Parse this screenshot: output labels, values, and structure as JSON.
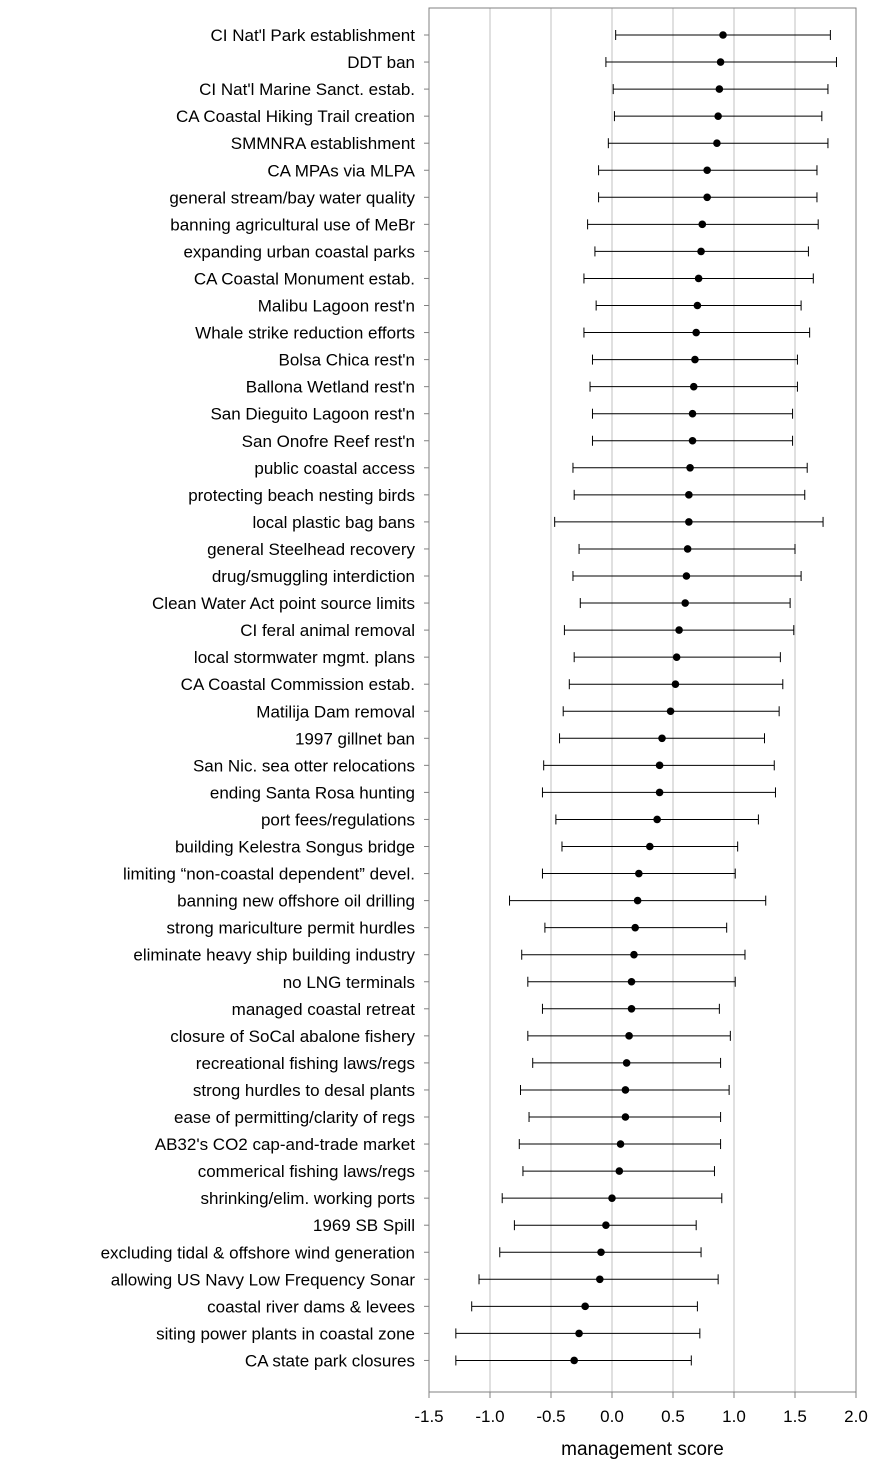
{
  "chart_data": {
    "type": "scatter",
    "orientation": "horizontal",
    "xlabel": "management score",
    "xlim": [
      -1.5,
      2.0
    ],
    "xticks": [
      "-1.5",
      "-1.0",
      "-0.5",
      "0.0",
      "0.5",
      "1.0",
      "1.5",
      "2.0"
    ],
    "xtick_values": [
      -1.5,
      -1.0,
      -0.5,
      0.0,
      0.5,
      1.0,
      1.5,
      2.0
    ],
    "grid": "vertical",
    "marker_color": "#000000",
    "grid_color": "#c0c0c0",
    "points": [
      {
        "label": "CI Nat'l Park establishment",
        "mean": 0.91,
        "low": 0.03,
        "high": 1.79
      },
      {
        "label": "DDT ban",
        "mean": 0.89,
        "low": -0.05,
        "high": 1.84
      },
      {
        "label": "CI Nat'l Marine Sanct. estab.",
        "mean": 0.88,
        "low": 0.01,
        "high": 1.77
      },
      {
        "label": "CA Coastal Hiking Trail creation",
        "mean": 0.87,
        "low": 0.02,
        "high": 1.72
      },
      {
        "label": "SMMNRA establishment",
        "mean": 0.86,
        "low": -0.03,
        "high": 1.77
      },
      {
        "label": "CA MPAs via MLPA",
        "mean": 0.78,
        "low": -0.11,
        "high": 1.68
      },
      {
        "label": "general stream/bay water quality",
        "mean": 0.78,
        "low": -0.11,
        "high": 1.68
      },
      {
        "label": "banning agricultural use of MeBr",
        "mean": 0.74,
        "low": -0.2,
        "high": 1.69
      },
      {
        "label": "expanding urban coastal parks",
        "mean": 0.73,
        "low": -0.14,
        "high": 1.61
      },
      {
        "label": "CA Coastal Monument estab.",
        "mean": 0.71,
        "low": -0.23,
        "high": 1.65
      },
      {
        "label": "Malibu Lagoon rest'n",
        "mean": 0.7,
        "low": -0.13,
        "high": 1.55
      },
      {
        "label": "Whale strike reduction efforts",
        "mean": 0.69,
        "low": -0.23,
        "high": 1.62
      },
      {
        "label": "Bolsa Chica rest'n",
        "mean": 0.68,
        "low": -0.16,
        "high": 1.52
      },
      {
        "label": "Ballona Wetland rest'n",
        "mean": 0.67,
        "low": -0.18,
        "high": 1.52
      },
      {
        "label": "San Dieguito Lagoon rest'n",
        "mean": 0.66,
        "low": -0.16,
        "high": 1.48
      },
      {
        "label": "San Onofre Reef rest'n",
        "mean": 0.66,
        "low": -0.16,
        "high": 1.48
      },
      {
        "label": "public coastal access",
        "mean": 0.64,
        "low": -0.32,
        "high": 1.6
      },
      {
        "label": "protecting beach nesting birds",
        "mean": 0.63,
        "low": -0.31,
        "high": 1.58
      },
      {
        "label": "local plastic bag bans",
        "mean": 0.63,
        "low": -0.47,
        "high": 1.73
      },
      {
        "label": "general Steelhead recovery",
        "mean": 0.62,
        "low": -0.27,
        "high": 1.5
      },
      {
        "label": "drug/smuggling interdiction",
        "mean": 0.61,
        "low": -0.32,
        "high": 1.55
      },
      {
        "label": "Clean Water Act point source limits",
        "mean": 0.6,
        "low": -0.26,
        "high": 1.46
      },
      {
        "label": "CI feral animal removal",
        "mean": 0.55,
        "low": -0.39,
        "high": 1.49
      },
      {
        "label": "local stormwater mgmt. plans",
        "mean": 0.53,
        "low": -0.31,
        "high": 1.38
      },
      {
        "label": "CA Coastal Commission estab.",
        "mean": 0.52,
        "low": -0.35,
        "high": 1.4
      },
      {
        "label": "Matilija Dam removal",
        "mean": 0.48,
        "low": -0.4,
        "high": 1.37
      },
      {
        "label": "1997 gillnet ban",
        "mean": 0.41,
        "low": -0.43,
        "high": 1.25
      },
      {
        "label": "San Nic. sea otter relocations",
        "mean": 0.39,
        "low": -0.56,
        "high": 1.33
      },
      {
        "label": "ending Santa Rosa hunting",
        "mean": 0.39,
        "low": -0.57,
        "high": 1.34
      },
      {
        "label": "port fees/regulations",
        "mean": 0.37,
        "low": -0.46,
        "high": 1.2
      },
      {
        "label": "building Kelestra Songus bridge",
        "mean": 0.31,
        "low": -0.41,
        "high": 1.03
      },
      {
        "label": "limiting “non-coastal dependent” devel.",
        "mean": 0.22,
        "low": -0.57,
        "high": 1.01
      },
      {
        "label": "banning new offshore oil drilling",
        "mean": 0.21,
        "low": -0.84,
        "high": 1.26
      },
      {
        "label": "strong mariculture permit hurdles",
        "mean": 0.19,
        "low": -0.55,
        "high": 0.94
      },
      {
        "label": "eliminate heavy ship building industry",
        "mean": 0.18,
        "low": -0.74,
        "high": 1.09
      },
      {
        "label": "no LNG terminals",
        "mean": 0.16,
        "low": -0.69,
        "high": 1.01
      },
      {
        "label": "managed coastal retreat",
        "mean": 0.16,
        "low": -0.57,
        "high": 0.88
      },
      {
        "label": "closure of SoCal abalone fishery",
        "mean": 0.14,
        "low": -0.69,
        "high": 0.97
      },
      {
        "label": "recreational fishing laws/regs",
        "mean": 0.12,
        "low": -0.65,
        "high": 0.89
      },
      {
        "label": "strong hurdles to desal plants",
        "mean": 0.11,
        "low": -0.75,
        "high": 0.96
      },
      {
        "label": "ease of permitting/clarity of regs",
        "mean": 0.11,
        "low": -0.68,
        "high": 0.89
      },
      {
        "label": "AB32's CO2 cap-and-trade market",
        "mean": 0.07,
        "low": -0.76,
        "high": 0.89
      },
      {
        "label": "commerical fishing laws/regs",
        "mean": 0.06,
        "low": -0.73,
        "high": 0.84
      },
      {
        "label": "shrinking/elim. working ports",
        "mean": 0.0,
        "low": -0.9,
        "high": 0.9
      },
      {
        "label": "1969 SB Spill",
        "mean": -0.05,
        "low": -0.8,
        "high": 0.69
      },
      {
        "label": "excluding tidal & offshore wind generation",
        "mean": -0.09,
        "low": -0.92,
        "high": 0.73
      },
      {
        "label": "allowing US Navy Low Frequency Sonar",
        "mean": -0.1,
        "low": -1.09,
        "high": 0.87
      },
      {
        "label": "coastal river dams & levees",
        "mean": -0.22,
        "low": -1.15,
        "high": 0.7
      },
      {
        "label": "siting power plants in coastal zone",
        "mean": -0.27,
        "low": -1.28,
        "high": 0.72
      },
      {
        "label": "CA state park closures",
        "mean": -0.31,
        "low": -1.28,
        "high": 0.65
      }
    ]
  }
}
